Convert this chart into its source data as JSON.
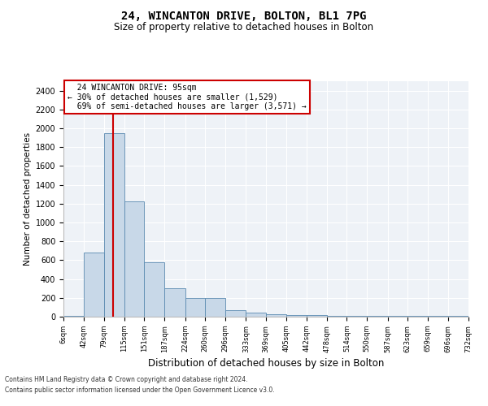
{
  "title": "24, WINCANTON DRIVE, BOLTON, BL1 7PG",
  "subtitle": "Size of property relative to detached houses in Bolton",
  "xlabel": "Distribution of detached houses by size in Bolton",
  "ylabel": "Number of detached properties",
  "property_size": 95,
  "property_label": "24 WINCANTON DRIVE: 95sqm",
  "pct_smaller": 30,
  "num_smaller": 1529,
  "pct_larger_semi": 69,
  "num_larger_semi": 3571,
  "footnote1": "Contains HM Land Registry data © Crown copyright and database right 2024.",
  "footnote2": "Contains public sector information licensed under the Open Government Licence v3.0.",
  "bin_edges": [
    6,
    42,
    79,
    115,
    151,
    187,
    224,
    260,
    296,
    333,
    369,
    405,
    442,
    478,
    514,
    550,
    587,
    623,
    659,
    696,
    732
  ],
  "bar_heights": [
    5,
    680,
    1950,
    1220,
    575,
    300,
    195,
    195,
    70,
    40,
    30,
    20,
    20,
    5,
    5,
    5,
    5,
    5,
    5,
    5
  ],
  "bar_color": "#c8d8e8",
  "bar_edge_color": "#5a8ab0",
  "red_line_color": "#cc0000",
  "annotation_box_color": "#cc0000",
  "background_color": "#eef2f7",
  "ylim": [
    0,
    2500
  ],
  "yticks": [
    0,
    200,
    400,
    600,
    800,
    1000,
    1200,
    1400,
    1600,
    1800,
    2000,
    2200,
    2400
  ]
}
